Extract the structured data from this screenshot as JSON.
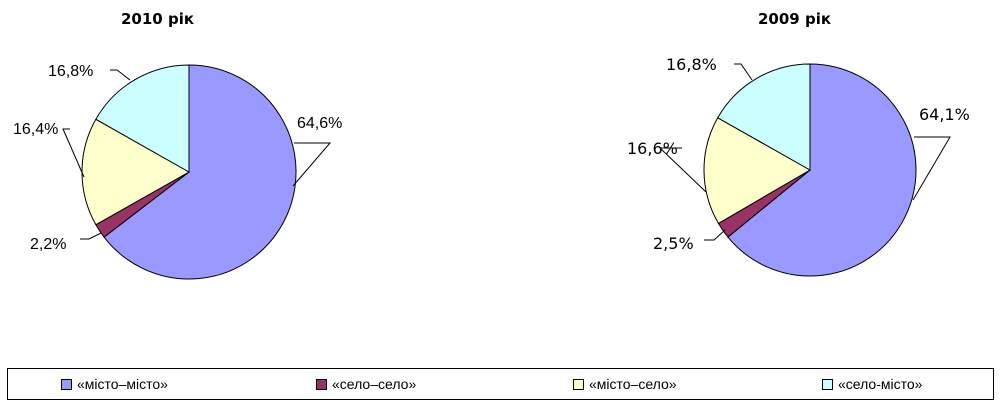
{
  "colors": {
    "misto_misto": "#9999ff",
    "selo_selo": "#993366",
    "misto_selo": "#ffffcc",
    "selo_misto": "#ccffff"
  },
  "legend": {
    "items": [
      {
        "label": "«місто–місто»",
        "color": "#9999ff"
      },
      {
        "label": "«село–село»",
        "color": "#993366"
      },
      {
        "label": "«місто–село»",
        "color": "#ffffcc"
      },
      {
        "label": "«село-місто»",
        "color": "#ccffff"
      }
    ]
  },
  "chart_data": [
    {
      "type": "pie",
      "title": "2010 рік",
      "categories": [
        "«місто–місто»",
        "«село–село»",
        "«місто–село»",
        "«село-місто»"
      ],
      "values": [
        64.6,
        2.2,
        16.4,
        16.8
      ],
      "labels": [
        "64,6%",
        "2,2%",
        "16,4%",
        "16,8%"
      ],
      "colors": [
        "#9999ff",
        "#993366",
        "#ffffcc",
        "#ccffff"
      ],
      "legend_position": "bottom"
    },
    {
      "type": "pie",
      "title": "2009 рік",
      "categories": [
        "«місто–місто»",
        "«село–село»",
        "«місто–село»",
        "«село-місто»"
      ],
      "values": [
        64.1,
        2.5,
        16.6,
        16.8
      ],
      "labels": [
        "64,1%",
        "2,5%",
        "16,6%",
        "16,8%"
      ],
      "colors": [
        "#9999ff",
        "#993366",
        "#ffffcc",
        "#ccffff"
      ],
      "legend_position": "bottom"
    }
  ]
}
